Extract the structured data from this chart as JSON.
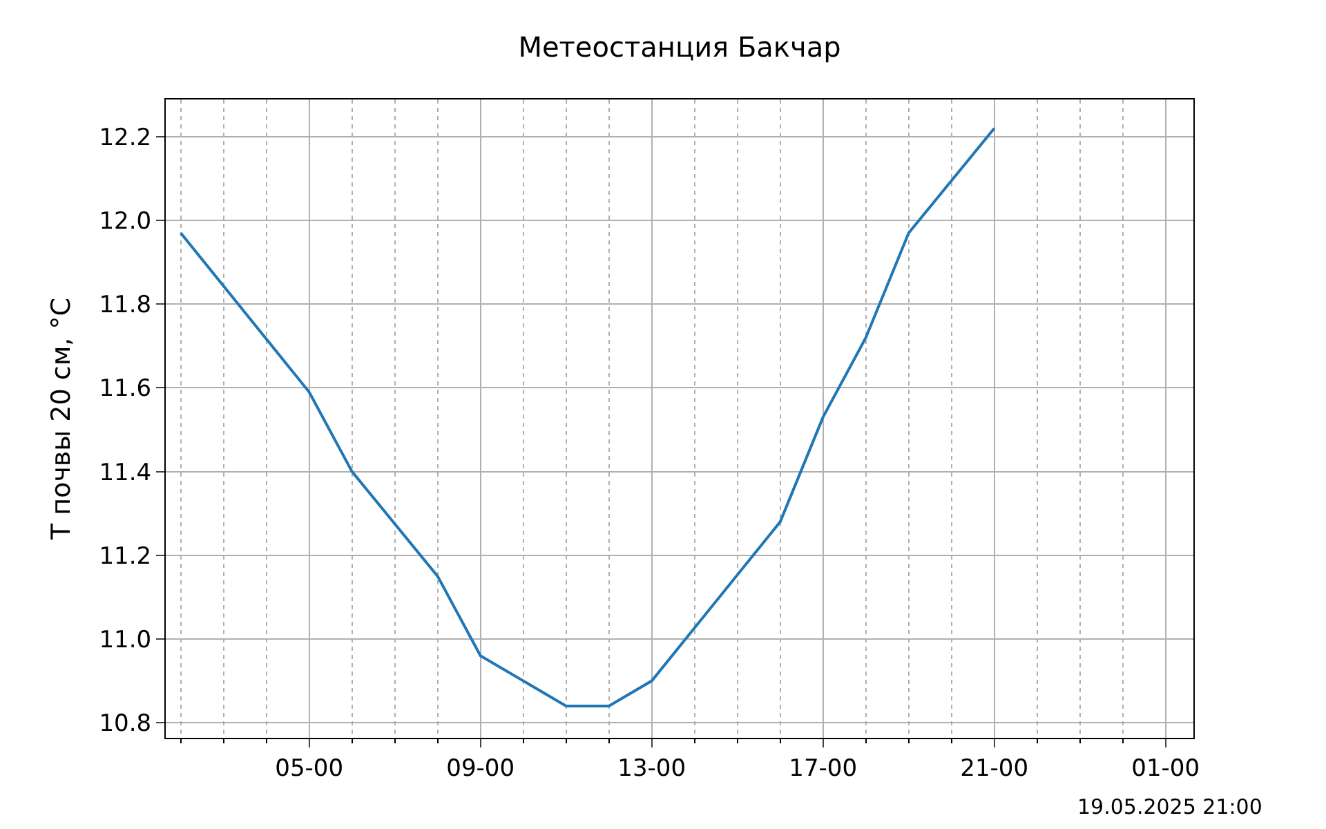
{
  "chart_data": {
    "type": "line",
    "title": "Метеостанция Бакчар",
    "ylabel": "T почвы 20 см, °C",
    "x": [
      "2025-05-19T02:00",
      "2025-05-19T05:00",
      "2025-05-19T06:00",
      "2025-05-19T08:00",
      "2025-05-19T09:00",
      "2025-05-19T11:00",
      "2025-05-19T12:00",
      "2025-05-19T13:00",
      "2025-05-19T16:00",
      "2025-05-19T17:00",
      "2025-05-19T18:00",
      "2025-05-19T19:00",
      "2025-05-19T21:00"
    ],
    "series": [
      {
        "color": "#1f77b4",
        "values": [
          11.97,
          11.59,
          11.4,
          11.15,
          10.96,
          10.84,
          10.84,
          10.9,
          11.28,
          11.53,
          11.72,
          11.97,
          12.22
        ]
      }
    ],
    "xlim": [
      "2025-05-19T01:39",
      "2025-05-20T01:39"
    ],
    "xticks": [
      {
        "value": "2025-05-19T02:00",
        "label": null
      },
      {
        "value": "2025-05-19T03:00",
        "label": null
      },
      {
        "value": "2025-05-19T04:00",
        "label": null
      },
      {
        "value": "2025-05-19T05:00",
        "label": "05-00"
      },
      {
        "value": "2025-05-19T06:00",
        "label": null
      },
      {
        "value": "2025-05-19T07:00",
        "label": null
      },
      {
        "value": "2025-05-19T08:00",
        "label": null
      },
      {
        "value": "2025-05-19T09:00",
        "label": "09-00"
      },
      {
        "value": "2025-05-19T10:00",
        "label": null
      },
      {
        "value": "2025-05-19T11:00",
        "label": null
      },
      {
        "value": "2025-05-19T12:00",
        "label": null
      },
      {
        "value": "2025-05-19T13:00",
        "label": "13-00"
      },
      {
        "value": "2025-05-19T14:00",
        "label": null
      },
      {
        "value": "2025-05-19T15:00",
        "label": null
      },
      {
        "value": "2025-05-19T16:00",
        "label": null
      },
      {
        "value": "2025-05-19T17:00",
        "label": "17-00"
      },
      {
        "value": "2025-05-19T18:00",
        "label": null
      },
      {
        "value": "2025-05-19T19:00",
        "label": null
      },
      {
        "value": "2025-05-19T20:00",
        "label": null
      },
      {
        "value": "2025-05-19T21:00",
        "label": "21-00"
      },
      {
        "value": "2025-05-19T22:00",
        "label": null
      },
      {
        "value": "2025-05-19T23:00",
        "label": null
      },
      {
        "value": "2025-05-20T00:00",
        "label": null
      },
      {
        "value": "2025-05-20T01:00",
        "label": "01-00"
      }
    ],
    "ylim": [
      10.764,
      12.289
    ],
    "yticks": [
      {
        "value": 10.8,
        "label": "10.8"
      },
      {
        "value": 11.0,
        "label": "11.0"
      },
      {
        "value": 11.2,
        "label": "11.2"
      },
      {
        "value": 11.4,
        "label": "11.4"
      },
      {
        "value": 11.6,
        "label": "11.6"
      },
      {
        "value": 11.8,
        "label": "11.8"
      },
      {
        "value": 12.0,
        "label": "12.0"
      },
      {
        "value": 12.2,
        "label": "12.2"
      }
    ],
    "grid": true,
    "line_style": "solid",
    "marker": "none",
    "annotations": [
      "19.05.2025 21:00"
    ]
  }
}
